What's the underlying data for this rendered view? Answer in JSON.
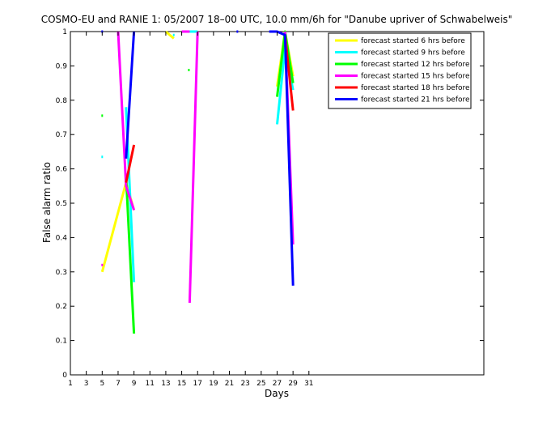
{
  "chart_data": {
    "type": "line",
    "title": "COSMO-EU and RANIE 1: 05/2007 18–00 UTC, 10.0 mm/6h for \"Danube upriver of Schwabelweis\"",
    "xlabel": "Days",
    "ylabel": "False alarm ratio",
    "xlim": [
      1,
      53
    ],
    "ylim": [
      0,
      1
    ],
    "xticks": [
      1,
      3,
      5,
      7,
      9,
      11,
      13,
      15,
      17,
      19,
      21,
      23,
      25,
      27,
      29,
      31
    ],
    "yticks": [
      0,
      0.1,
      0.2,
      0.3,
      0.4,
      0.5,
      0.6,
      0.7,
      0.8,
      0.9,
      1
    ],
    "grid": false,
    "legend_position": "top-right",
    "series": [
      {
        "name": "forecast started 6 hrs before",
        "color": "#ffff00",
        "points": [
          [
            5,
            0.3
          ],
          [
            8,
            0.56
          ],
          [
            9,
            0.48
          ],
          [
            null,
            null
          ],
          [
            13,
            1.0
          ],
          [
            14,
            0.98
          ],
          [
            null,
            null
          ],
          [
            16,
            1.0
          ],
          [
            17,
            1.0
          ],
          [
            null,
            null
          ],
          [
            27,
            0.84
          ],
          [
            28,
            1.0
          ],
          [
            29,
            0.87
          ]
        ]
      },
      {
        "name": "forecast started 9 hrs before",
        "color": "#00ffff",
        "points": [
          [
            5,
            0.635
          ],
          [
            null,
            null
          ],
          [
            8,
            0.78
          ],
          [
            9,
            0.27
          ],
          [
            null,
            null
          ],
          [
            14,
            0.99
          ],
          [
            null,
            null
          ],
          [
            16,
            1.0
          ],
          [
            17,
            1.0
          ],
          [
            null,
            null
          ],
          [
            27,
            0.73
          ],
          [
            28,
            0.95
          ],
          [
            29,
            0.83
          ]
        ]
      },
      {
        "name": "forecast started 12 hrs before",
        "color": "#00ff00",
        "points": [
          [
            5,
            0.755
          ],
          [
            null,
            null
          ],
          [
            8,
            0.58
          ],
          [
            9,
            0.12
          ],
          [
            null,
            null
          ],
          [
            15.9,
            0.888
          ],
          [
            null,
            null
          ],
          [
            27,
            0.81
          ],
          [
            28,
            1.0
          ],
          [
            29,
            0.85
          ]
        ]
      },
      {
        "name": "forecast started 15 hrs before",
        "color": "#ff00ff",
        "points": [
          [
            5,
            0.32
          ],
          [
            null,
            null
          ],
          [
            7,
            1.0
          ],
          [
            8,
            0.55
          ],
          [
            9,
            0.48
          ],
          [
            null,
            null
          ],
          [
            15,
            1.0
          ],
          [
            16,
            1.0
          ],
          [
            null,
            null
          ],
          [
            16,
            0.21
          ],
          [
            17,
            1.0
          ],
          [
            null,
            null
          ],
          [
            28,
            1.0
          ],
          [
            29,
            0.38
          ]
        ]
      },
      {
        "name": "forecast started 18 hrs before",
        "color": "#ff0000",
        "points": [
          [
            8,
            0.56
          ],
          [
            9,
            0.67
          ],
          [
            null,
            null
          ],
          [
            28,
            0.99
          ],
          [
            29,
            0.77
          ]
        ]
      },
      {
        "name": "forecast started 21 hrs before",
        "color": "#0000ff",
        "points": [
          [
            5,
            1.0
          ],
          [
            null,
            null
          ],
          [
            8,
            0.63
          ],
          [
            9,
            1.0
          ],
          [
            null,
            null
          ],
          [
            22,
            1.0
          ],
          [
            null,
            null
          ],
          [
            26,
            1.0
          ],
          [
            27,
            1.0
          ],
          [
            28,
            0.99
          ],
          [
            29,
            0.26
          ]
        ]
      }
    ]
  }
}
